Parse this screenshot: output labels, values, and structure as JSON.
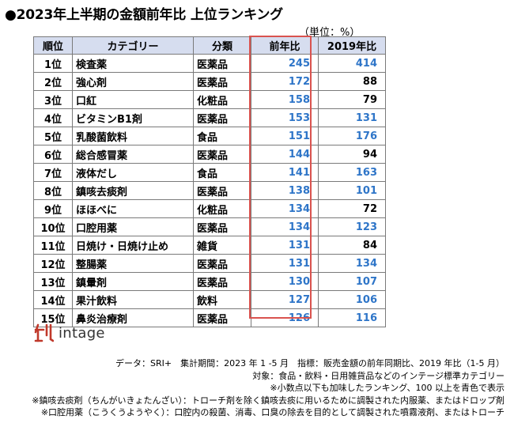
{
  "title": "●2023年上半期の金額前年比 上位ランキング",
  "unit": "（単位：%）",
  "table": {
    "headers": [
      "順位",
      "カテゴリー",
      "分類",
      "前年比",
      "2019年比"
    ],
    "rows": [
      {
        "rank": "1位",
        "category": "検査薬",
        "class": "医薬品",
        "yoy": 245,
        "vs2019": 414
      },
      {
        "rank": "2位",
        "category": "強心剤",
        "class": "医薬品",
        "yoy": 172,
        "vs2019": 88
      },
      {
        "rank": "3位",
        "category": "口紅",
        "class": "化粧品",
        "yoy": 158,
        "vs2019": 79
      },
      {
        "rank": "4位",
        "category": "ビタミンB1剤",
        "class": "医薬品",
        "yoy": 153,
        "vs2019": 131
      },
      {
        "rank": "5位",
        "category": "乳酸菌飲料",
        "class": "食品",
        "yoy": 151,
        "vs2019": 176
      },
      {
        "rank": "6位",
        "category": "総合感冒薬",
        "class": "医薬品",
        "yoy": 144,
        "vs2019": 94
      },
      {
        "rank": "7位",
        "category": "液体だし",
        "class": "食品",
        "yoy": 141,
        "vs2019": 163
      },
      {
        "rank": "8位",
        "category": "鎮咳去痰剤",
        "class": "医薬品",
        "yoy": 138,
        "vs2019": 101
      },
      {
        "rank": "9位",
        "category": "ほほべに",
        "class": "化粧品",
        "yoy": 134,
        "vs2019": 72
      },
      {
        "rank": "10位",
        "category": "口腔用薬",
        "class": "医薬品",
        "yoy": 134,
        "vs2019": 123
      },
      {
        "rank": "11位",
        "category": "日焼け・日焼け止め",
        "class": "雑貨",
        "yoy": 131,
        "vs2019": 84
      },
      {
        "rank": "12位",
        "category": "整腸薬",
        "class": "医薬品",
        "yoy": 131,
        "vs2019": 134
      },
      {
        "rank": "13位",
        "category": "鎮暈剤",
        "class": "医薬品",
        "yoy": 130,
        "vs2019": 107
      },
      {
        "rank": "14位",
        "category": "果汁飲料",
        "class": "飲料",
        "yoy": 127,
        "vs2019": 106
      },
      {
        "rank": "15位",
        "category": "鼻炎治療剤",
        "class": "医薬品",
        "yoy": 126,
        "vs2019": 116
      }
    ],
    "highlight_threshold": 100
  },
  "colors": {
    "header_bg": "#d6ddef",
    "highlight_text": "#2e75c8",
    "box_border": "#d9534f",
    "logo_red": "#c0392b"
  },
  "logo": {
    "text": "intage",
    "icon": "intage-logo-icon"
  },
  "notes": [
    "データ：SRI+　集計期間：2023 年 1 -5 月　指標：販売金額の前年同期比、2019 年比（1-5 月）",
    "対象：食品・飲料・日用雑貨品などのインテージ標準カテゴリー",
    "※小数点以下も加味したランキング、100 以上を青色で表示",
    "※鎮咳去痰剤（ちんがいきょたんざい）：トローチ剤を除く鎮咳去痰に用いるために調製された内服薬、またはドロップ剤",
    "※口腔用薬（こうくうようやく）：口腔内の殺菌、消毒、口臭の除去を目的として調製された噴霧液剤、またはトローチ"
  ]
}
